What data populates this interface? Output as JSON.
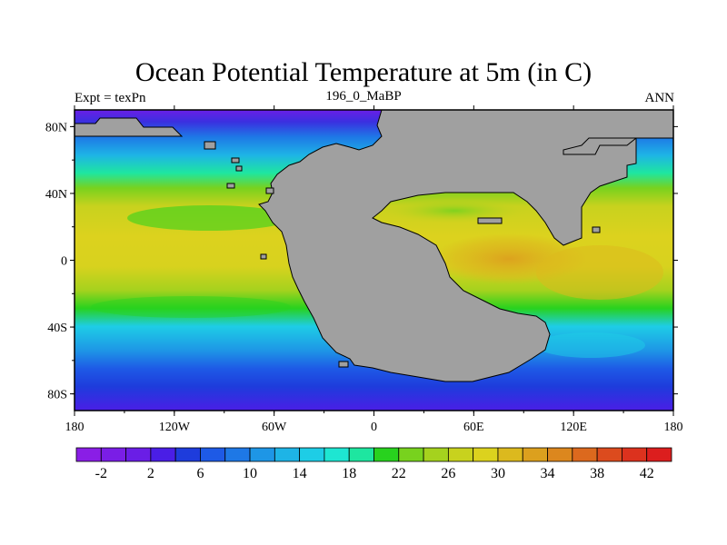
{
  "title": "Ocean Potential Temperature at 5m (in C)",
  "subtitle_left": "Expt = texPn",
  "subtitle_center": "196_0_MaBP",
  "subtitle_right": "ANN",
  "map": {
    "lon_range": [
      -180,
      180
    ],
    "lat_range": [
      -90,
      90
    ],
    "land_color": "#a0a0a0",
    "x_tick_labels": [
      "180",
      "120W",
      "60W",
      "0",
      "60E",
      "120E",
      "180"
    ],
    "y_tick_labels": [
      "80N",
      "40N",
      "0",
      "40S",
      "80S"
    ]
  },
  "colorbar": {
    "labels": [
      "-2",
      "2",
      "6",
      "10",
      "14",
      "18",
      "22",
      "26",
      "30",
      "34",
      "38",
      "42"
    ],
    "colors": [
      "#8a1ee6",
      "#7a1ee6",
      "#6a1ee6",
      "#4a1ee6",
      "#1e3cdc",
      "#1e5ae6",
      "#1e78e6",
      "#1e96e6",
      "#1eb4e6",
      "#1ecde6",
      "#1ee6d2",
      "#1ee6a0",
      "#28d21e",
      "#78d21e",
      "#a5d21e",
      "#c8d21e",
      "#dcd21e",
      "#dcb91e",
      "#dca01e",
      "#dc871e",
      "#dc691e",
      "#dc4b1e",
      "#dc321e",
      "#dc1e1e"
    ]
  }
}
